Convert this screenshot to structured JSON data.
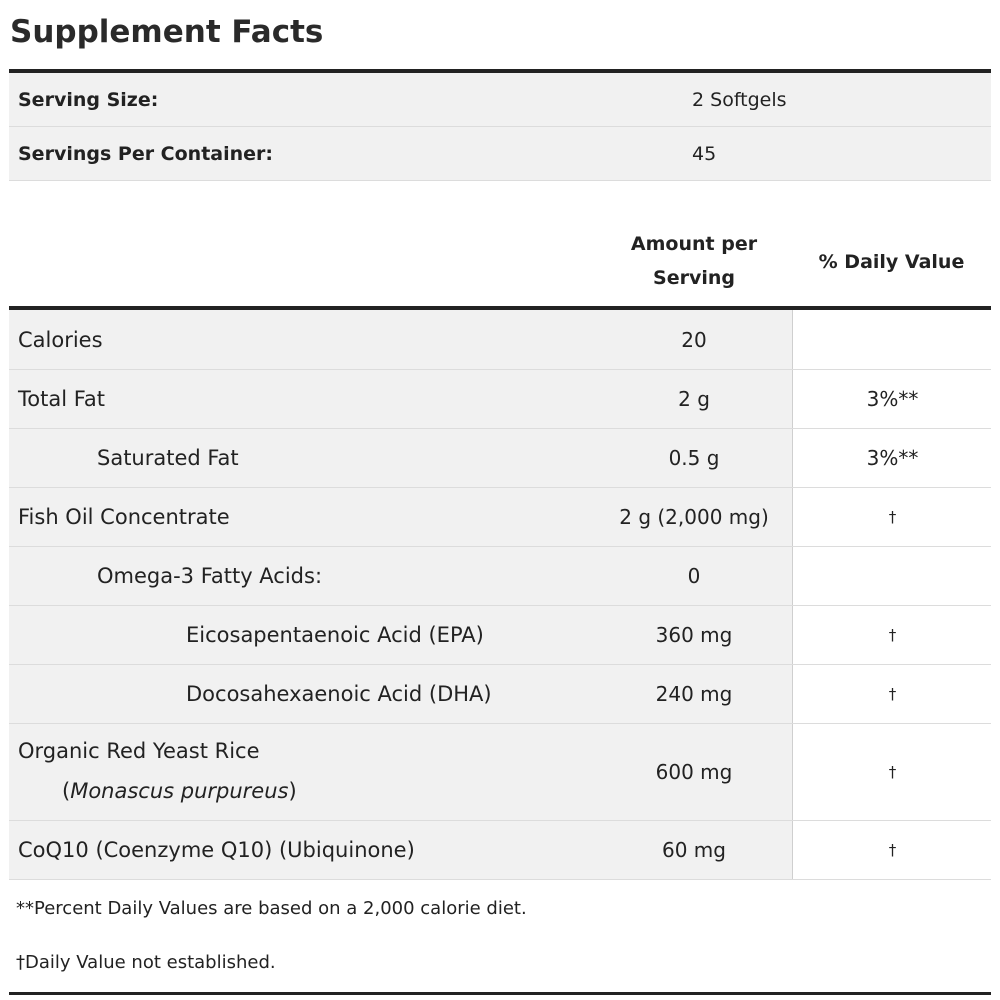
{
  "title": "Supplement Facts",
  "serving": [
    {
      "label": "Serving Size:",
      "value": "2 Softgels"
    },
    {
      "label": "Servings Per Container:",
      "value": "45"
    }
  ],
  "headers": {
    "amount_line1": "Amount per",
    "amount_line2": "Serving",
    "daily_value": "% Daily Value"
  },
  "rows": [
    {
      "name": "Calories",
      "amount": "20",
      "dv": ""
    },
    {
      "name": "Total Fat",
      "amount": "2 g",
      "dv": "3%**"
    },
    {
      "name": "Saturated Fat",
      "amount": "0.5 g",
      "dv": "3%**"
    },
    {
      "name": "Fish Oil Concentrate",
      "amount": "2 g (2,000 mg)",
      "dv": "†"
    },
    {
      "name": "Omega-3 Fatty Acids:",
      "amount": "0",
      "dv": ""
    },
    {
      "name": "Eicosapentaenoic Acid (EPA)",
      "amount": "360 mg",
      "dv": "†"
    },
    {
      "name": "Docosahexaenoic Acid (DHA)",
      "amount": "240 mg",
      "dv": "†"
    },
    {
      "name": "Organic Red Yeast Rice",
      "name_sub_open": "(",
      "name_sub_italic": "Monascus purpureus",
      "name_sub_close": ")",
      "amount": "600 mg",
      "dv": "†"
    },
    {
      "name": "CoQ10 (Coenzyme Q10) (Ubiquinone)",
      "amount": "60 mg",
      "dv": "†"
    }
  ],
  "footnotes": [
    "**Percent Daily Values are based on a 2,000 calorie diet.",
    "†Daily Value not established."
  ]
}
